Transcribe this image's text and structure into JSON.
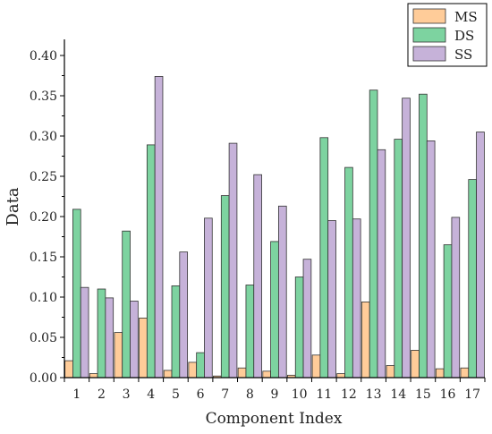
{
  "chart_data": {
    "type": "bar",
    "title": "",
    "xlabel": "Component Index",
    "ylabel": "Data",
    "ylim": [
      0,
      0.42
    ],
    "grid": false,
    "legend_position": "top-right",
    "categories": [
      "1",
      "2",
      "3",
      "4",
      "5",
      "6",
      "7",
      "8",
      "9",
      "10",
      "11",
      "12",
      "13",
      "14",
      "15",
      "16",
      "17"
    ],
    "y_ticks": [
      "0.00",
      "0.05",
      "0.10",
      "0.15",
      "0.20",
      "0.25",
      "0.30",
      "0.35",
      "0.40"
    ],
    "series": [
      {
        "name": "MS",
        "color": "#FFCC99",
        "values": [
          0.021,
          0.005,
          0.056,
          0.074,
          0.009,
          0.019,
          0.002,
          0.012,
          0.008,
          0.003,
          0.028,
          0.005,
          0.094,
          0.015,
          0.034,
          0.011,
          0.012
        ]
      },
      {
        "name": "DS",
        "color": "#7DD3A0",
        "values": [
          0.209,
          0.11,
          0.182,
          0.289,
          0.114,
          0.031,
          0.226,
          0.115,
          0.169,
          0.125,
          0.298,
          0.261,
          0.357,
          0.296,
          0.352,
          0.165,
          0.246
        ]
      },
      {
        "name": "SS",
        "color": "#C6B2D9",
        "values": [
          0.112,
          0.099,
          0.095,
          0.374,
          0.156,
          0.198,
          0.291,
          0.252,
          0.213,
          0.147,
          0.195,
          0.197,
          0.283,
          0.347,
          0.294,
          0.199,
          0.305
        ]
      }
    ]
  }
}
